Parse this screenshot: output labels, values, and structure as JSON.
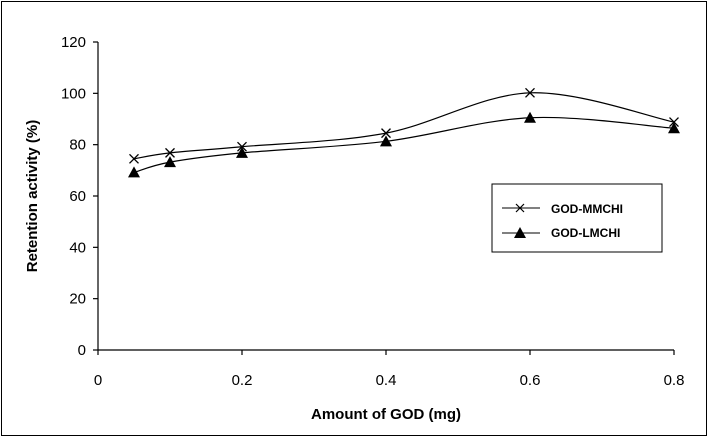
{
  "chart_data": {
    "type": "line",
    "xlabel": "Amount of GOD (mg)",
    "ylabel": "Retention activity (%)",
    "xlim": [
      0,
      0.8
    ],
    "ylim": [
      0,
      120
    ],
    "x_ticks": [
      "0",
      "0.2",
      "0.4",
      "0.6",
      "0.8"
    ],
    "y_ticks": [
      "0",
      "20",
      "40",
      "60",
      "80",
      "100",
      "120"
    ],
    "grid": false,
    "legend_position": "right",
    "series": [
      {
        "name": "GOD-MMCHI",
        "marker": "x",
        "x": [
          0.05,
          0.1,
          0.2,
          0.4,
          0.6,
          0.8
        ],
        "y": [
          74.5,
          76.8,
          79.2,
          84.5,
          100.2,
          88.8
        ]
      },
      {
        "name": "GOD-LMCHI",
        "marker": "triangle",
        "x": [
          0.05,
          0.1,
          0.2,
          0.4,
          0.6,
          0.8
        ],
        "y": [
          69.2,
          73.2,
          76.8,
          81.3,
          90.5,
          86.4
        ]
      }
    ]
  }
}
